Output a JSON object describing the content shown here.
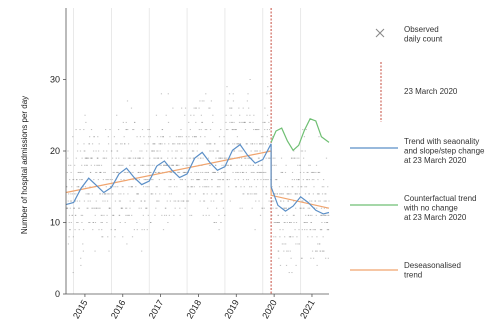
{
  "chart_data": {
    "type": "scatter",
    "ylabel": "Number of hospital admissions per day",
    "xlabel": "",
    "ylim": [
      0,
      40
    ],
    "xlim": [
      2014.8,
      2021.75
    ],
    "y_ticks": [
      0,
      10,
      20,
      30
    ],
    "x_ticks": [
      {
        "label": "2015",
        "value": 2015.3
      },
      {
        "label": "2016",
        "value": 2016.3
      },
      {
        "label": "2017",
        "value": 2017.3
      },
      {
        "label": "2018",
        "value": 2018.3
      },
      {
        "label": "2019",
        "value": 2019.3
      },
      {
        "label": "2020",
        "value": 2020.3
      },
      {
        "label": "2021",
        "value": 2021.3
      }
    ],
    "year_gridlines": [
      2015,
      2016,
      2017,
      2018,
      2019,
      2020,
      2021
    ],
    "intervention": {
      "x": 2020.22,
      "label": "23 March 2020",
      "color": "#c0392b"
    },
    "series": [
      {
        "name": "Observed daily count",
        "kind": "scatter",
        "color": "#8c8c8c",
        "y_min": 1,
        "y_max": 38
      },
      {
        "name": "Trend with seaonality and slope/step change at 23 March 2020",
        "kind": "line",
        "color": "#5b8fc7",
        "x": [
          2014.8,
          2015.0,
          2015.2,
          2015.4,
          2015.6,
          2015.8,
          2016.0,
          2016.2,
          2016.4,
          2016.6,
          2016.8,
          2017.0,
          2017.2,
          2017.4,
          2017.6,
          2017.8,
          2018.0,
          2018.2,
          2018.4,
          2018.6,
          2018.8,
          2019.0,
          2019.2,
          2019.4,
          2019.6,
          2019.8,
          2020.0,
          2020.22,
          2020.22,
          2020.4,
          2020.6,
          2020.8,
          2021.0,
          2021.2,
          2021.4,
          2021.6,
          2021.75
        ],
        "y": [
          12.5,
          12.8,
          14.8,
          16.2,
          15.2,
          14.2,
          14.9,
          16.8,
          17.6,
          16.3,
          15.3,
          15.8,
          17.9,
          18.6,
          17.3,
          16.3,
          16.8,
          19.0,
          19.8,
          18.4,
          17.3,
          17.8,
          20.1,
          20.9,
          19.4,
          18.3,
          18.8,
          21.0,
          15.0,
          12.4,
          11.6,
          12.3,
          13.6,
          12.8,
          11.7,
          11.2,
          11.4
        ]
      },
      {
        "name": "Counterfactual trend with no change at 23 March 2020",
        "kind": "line",
        "color": "#6fbf73",
        "x": [
          2020.22,
          2020.35,
          2020.5,
          2020.65,
          2020.8,
          2020.95,
          2021.1,
          2021.25,
          2021.4,
          2021.55,
          2021.75
        ],
        "y": [
          21.2,
          22.8,
          23.2,
          21.4,
          20.1,
          20.8,
          22.9,
          24.5,
          24.2,
          22.0,
          21.2
        ]
      },
      {
        "name": "Deseasonalised trend",
        "kind": "line",
        "color": "#f0a46e",
        "x": [
          2014.8,
          2020.22,
          2020.22,
          2021.75
        ],
        "y": [
          14.2,
          20.0,
          13.8,
          12.0
        ]
      }
    ],
    "legend": {
      "placement": "right"
    }
  }
}
